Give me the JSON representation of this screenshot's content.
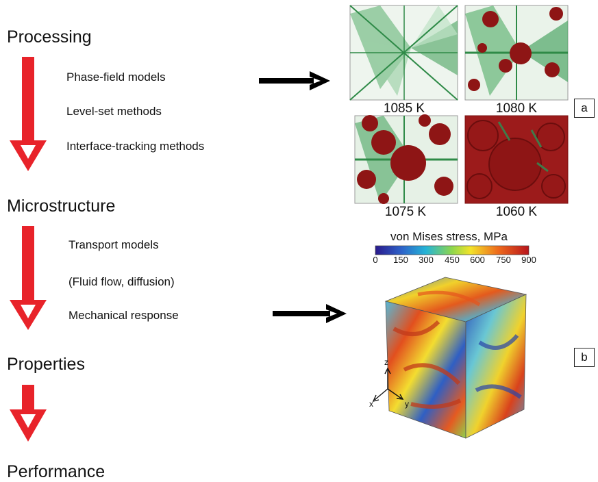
{
  "stages": {
    "processing": "Processing",
    "microstructure": "Microstructure",
    "properties": "Properties",
    "performance": "Performance"
  },
  "methods": {
    "processing": [
      "Phase-field models",
      "Level-set methods",
      "Interface-tracking methods"
    ],
    "microstructure": [
      "Transport models",
      "(Fluid flow, diffusion)",
      "Mechanical response"
    ]
  },
  "panel_a": {
    "tag": "a",
    "temperatures": [
      "1085 K",
      "1080 K",
      "1075 K",
      "1060 K"
    ]
  },
  "panel_b": {
    "tag": "b",
    "colorbar_title": "von Mises stress, MPa",
    "colorbar_ticks": [
      "0",
      "150",
      "300",
      "450",
      "600",
      "750",
      "900"
    ],
    "axes": {
      "z": "z",
      "x": "x",
      "y": "y"
    }
  },
  "colors": {
    "arrow_red": "#e8232a",
    "connector": "#000000",
    "grain_green": "#3f9e57",
    "particle_red": "#8e1515"
  }
}
